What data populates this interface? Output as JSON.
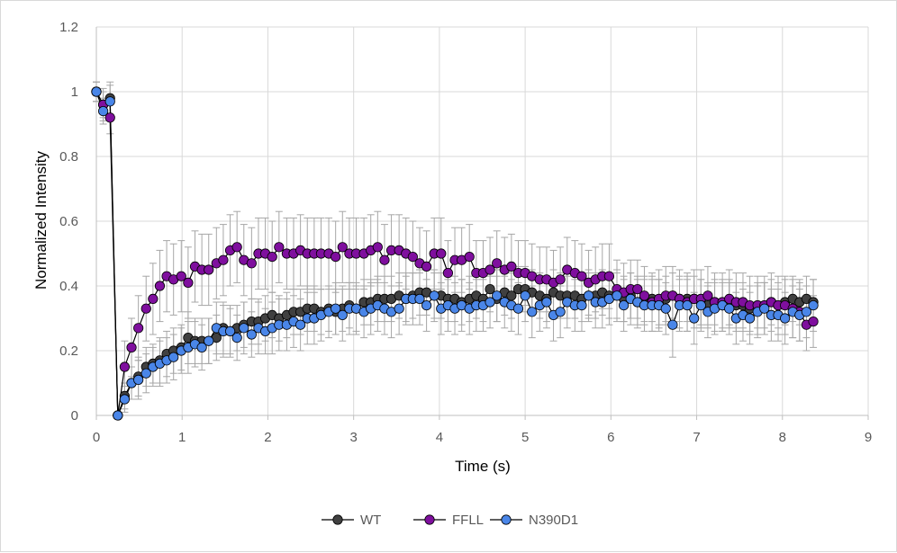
{
  "chart_data": {
    "type": "scatter",
    "title": "",
    "xlabel": "Time (s)",
    "ylabel": "Normalized Intensity",
    "xlim": [
      0,
      9
    ],
    "ylim": [
      0,
      1.2
    ],
    "x_ticks": [
      "0",
      "1",
      "2",
      "3",
      "4",
      "5",
      "6",
      "7",
      "8",
      "9"
    ],
    "y_ticks": [
      "0",
      "0.2",
      "0.4",
      "0.6",
      "0.8",
      "1",
      "1.2"
    ],
    "grid": true,
    "legend_position": "bottom",
    "series": [
      {
        "name": "WT",
        "color": "#404040",
        "x": [
          0,
          0.08,
          0.16,
          0.25,
          0.33,
          0.41,
          0.49,
          0.58,
          0.66,
          0.74,
          0.82,
          0.9,
          0.99,
          1.07,
          1.15,
          1.23,
          1.31,
          1.4,
          1.48,
          1.56,
          1.64,
          1.72,
          1.81,
          1.89,
          1.97,
          2.05,
          2.13,
          2.22,
          2.3,
          2.38,
          2.46,
          2.54,
          2.62,
          2.71,
          2.79,
          2.87,
          2.95,
          3.03,
          3.12,
          3.2,
          3.28,
          3.36,
          3.44,
          3.53,
          3.61,
          3.69,
          3.77,
          3.85,
          3.94,
          4.02,
          4.1,
          4.18,
          4.26,
          4.35,
          4.43,
          4.51,
          4.59,
          4.67,
          4.76,
          4.84,
          4.92,
          5,
          5.08,
          5.17,
          5.25,
          5.33,
          5.41,
          5.49,
          5.58,
          5.66,
          5.74,
          5.82,
          5.9,
          5.98,
          6.07,
          6.15,
          6.23,
          6.31,
          6.39,
          6.48,
          6.56,
          6.64,
          6.72,
          6.8,
          6.89,
          6.97,
          7.05,
          7.13,
          7.21,
          7.3,
          7.38,
          7.46,
          7.54,
          7.62,
          7.71,
          7.79,
          7.87,
          7.95,
          8.03,
          8.12,
          8.2,
          8.28,
          8.36
        ],
        "values": [
          1,
          0.96,
          0.98,
          0,
          0.06,
          0.1,
          0.12,
          0.15,
          0.16,
          0.17,
          0.19,
          0.2,
          0.21,
          0.24,
          0.23,
          0.23,
          0.23,
          0.24,
          0.27,
          0.26,
          0.27,
          0.28,
          0.29,
          0.29,
          0.3,
          0.31,
          0.3,
          0.31,
          0.32,
          0.32,
          0.33,
          0.33,
          0.32,
          0.33,
          0.32,
          0.33,
          0.34,
          0.33,
          0.35,
          0.35,
          0.36,
          0.36,
          0.36,
          0.37,
          0.36,
          0.37,
          0.38,
          0.38,
          0.37,
          0.37,
          0.36,
          0.36,
          0.35,
          0.36,
          0.37,
          0.36,
          0.39,
          0.36,
          0.38,
          0.37,
          0.39,
          0.39,
          0.38,
          0.37,
          0.36,
          0.38,
          0.37,
          0.37,
          0.37,
          0.36,
          0.37,
          0.37,
          0.38,
          0.37,
          0.37,
          0.36,
          0.37,
          0.35,
          0.36,
          0.36,
          0.35,
          0.36,
          0.37,
          0.36,
          0.36,
          0.36,
          0.35,
          0.34,
          0.35,
          0.34,
          0.35,
          0.34,
          0.34,
          0.33,
          0.34,
          0.34,
          0.35,
          0.34,
          0.35,
          0.36,
          0.35,
          0.36,
          0.35
        ],
        "errors": [
          0.03,
          0.04,
          0.05,
          0.01,
          0.04,
          0.05,
          0.06,
          0.06,
          0.06,
          0.07,
          0.07,
          0.07,
          0.07,
          0.08,
          0.07,
          0.07,
          0.07,
          0.07,
          0.08,
          0.07,
          0.07,
          0.07,
          0.07,
          0.07,
          0.07,
          0.07,
          0.07,
          0.07,
          0.07,
          0.07,
          0.07,
          0.07,
          0.07,
          0.07,
          0.07,
          0.07,
          0.07,
          0.07,
          0.07,
          0.07,
          0.07,
          0.07,
          0.07,
          0.07,
          0.07,
          0.07,
          0.07,
          0.07,
          0.07,
          0.07,
          0.07,
          0.07,
          0.07,
          0.07,
          0.07,
          0.07,
          0.07,
          0.07,
          0.07,
          0.07,
          0.07,
          0.07,
          0.07,
          0.07,
          0.07,
          0.07,
          0.07,
          0.07,
          0.07,
          0.07,
          0.07,
          0.07,
          0.07,
          0.07,
          0.07,
          0.07,
          0.07,
          0.07,
          0.07,
          0.07,
          0.07,
          0.07,
          0.07,
          0.07,
          0.07,
          0.07,
          0.07,
          0.07,
          0.07,
          0.07,
          0.07,
          0.07,
          0.07,
          0.07,
          0.07,
          0.07,
          0.07,
          0.07,
          0.07,
          0.07,
          0.07,
          0.07,
          0.07
        ]
      },
      {
        "name": "FFLL",
        "color": "#7f0f9e",
        "x": [
          0,
          0.08,
          0.16,
          0.25,
          0.33,
          0.41,
          0.49,
          0.58,
          0.66,
          0.74,
          0.82,
          0.9,
          0.99,
          1.07,
          1.15,
          1.23,
          1.31,
          1.4,
          1.48,
          1.56,
          1.64,
          1.72,
          1.81,
          1.89,
          1.97,
          2.05,
          2.13,
          2.22,
          2.3,
          2.38,
          2.46,
          2.54,
          2.62,
          2.71,
          2.79,
          2.87,
          2.95,
          3.03,
          3.12,
          3.2,
          3.28,
          3.36,
          3.44,
          3.53,
          3.61,
          3.69,
          3.77,
          3.85,
          3.94,
          4.02,
          4.1,
          4.18,
          4.26,
          4.35,
          4.43,
          4.51,
          4.59,
          4.67,
          4.76,
          4.84,
          4.92,
          5,
          5.08,
          5.17,
          5.25,
          5.33,
          5.41,
          5.49,
          5.58,
          5.66,
          5.74,
          5.82,
          5.9,
          5.98,
          6.07,
          6.15,
          6.23,
          6.31,
          6.39,
          6.48,
          6.56,
          6.64,
          6.72,
          6.8,
          6.89,
          6.97,
          7.05,
          7.13,
          7.21,
          7.3,
          7.38,
          7.46,
          7.54,
          7.62,
          7.71,
          7.79,
          7.87,
          7.95,
          8.03,
          8.12,
          8.2,
          8.28,
          8.36
        ],
        "values": [
          1,
          0.96,
          0.92,
          0,
          0.15,
          0.21,
          0.27,
          0.33,
          0.36,
          0.4,
          0.43,
          0.42,
          0.43,
          0.41,
          0.46,
          0.45,
          0.45,
          0.47,
          0.48,
          0.51,
          0.52,
          0.48,
          0.47,
          0.5,
          0.5,
          0.49,
          0.52,
          0.5,
          0.5,
          0.51,
          0.5,
          0.5,
          0.5,
          0.5,
          0.49,
          0.52,
          0.5,
          0.5,
          0.5,
          0.51,
          0.52,
          0.48,
          0.51,
          0.51,
          0.5,
          0.49,
          0.47,
          0.46,
          0.5,
          0.5,
          0.44,
          0.48,
          0.48,
          0.49,
          0.44,
          0.44,
          0.45,
          0.47,
          0.45,
          0.46,
          0.44,
          0.44,
          0.43,
          0.42,
          0.42,
          0.41,
          0.42,
          0.45,
          0.44,
          0.43,
          0.41,
          0.42,
          0.43,
          0.43,
          0.39,
          0.38,
          0.39,
          0.39,
          0.37,
          0.35,
          0.36,
          0.37,
          0.37,
          0.36,
          0.35,
          0.36,
          0.36,
          0.37,
          0.35,
          0.35,
          0.36,
          0.35,
          0.35,
          0.34,
          0.34,
          0.34,
          0.35,
          0.34,
          0.34,
          0.33,
          0.32,
          0.28,
          0.29
        ],
        "errors": [
          0.03,
          0.05,
          0.05,
          0.01,
          0.08,
          0.09,
          0.1,
          0.1,
          0.11,
          0.11,
          0.11,
          0.11,
          0.11,
          0.11,
          0.11,
          0.11,
          0.11,
          0.11,
          0.11,
          0.11,
          0.11,
          0.11,
          0.11,
          0.11,
          0.11,
          0.11,
          0.11,
          0.11,
          0.11,
          0.11,
          0.11,
          0.11,
          0.11,
          0.11,
          0.11,
          0.11,
          0.11,
          0.11,
          0.11,
          0.11,
          0.11,
          0.11,
          0.11,
          0.11,
          0.11,
          0.11,
          0.11,
          0.11,
          0.11,
          0.11,
          0.1,
          0.1,
          0.1,
          0.1,
          0.1,
          0.1,
          0.1,
          0.1,
          0.1,
          0.1,
          0.1,
          0.1,
          0.1,
          0.1,
          0.1,
          0.1,
          0.1,
          0.1,
          0.1,
          0.1,
          0.1,
          0.1,
          0.1,
          0.1,
          0.09,
          0.09,
          0.09,
          0.09,
          0.09,
          0.09,
          0.09,
          0.09,
          0.09,
          0.09,
          0.09,
          0.09,
          0.09,
          0.09,
          0.09,
          0.09,
          0.09,
          0.09,
          0.09,
          0.09,
          0.09,
          0.09,
          0.09,
          0.09,
          0.09,
          0.09,
          0.09,
          0.08,
          0.08
        ]
      },
      {
        "name": "N390D1",
        "color": "#4a86e8",
        "x": [
          0,
          0.08,
          0.16,
          0.25,
          0.33,
          0.41,
          0.49,
          0.58,
          0.66,
          0.74,
          0.82,
          0.9,
          0.99,
          1.07,
          1.15,
          1.23,
          1.31,
          1.4,
          1.48,
          1.56,
          1.64,
          1.72,
          1.81,
          1.89,
          1.97,
          2.05,
          2.13,
          2.22,
          2.3,
          2.38,
          2.46,
          2.54,
          2.62,
          2.71,
          2.79,
          2.87,
          2.95,
          3.03,
          3.12,
          3.2,
          3.28,
          3.36,
          3.44,
          3.53,
          3.61,
          3.69,
          3.77,
          3.85,
          3.94,
          4.02,
          4.1,
          4.18,
          4.26,
          4.35,
          4.43,
          4.51,
          4.59,
          4.67,
          4.76,
          4.84,
          4.92,
          5,
          5.08,
          5.17,
          5.25,
          5.33,
          5.41,
          5.49,
          5.58,
          5.66,
          5.74,
          5.82,
          5.9,
          5.98,
          6.07,
          6.15,
          6.23,
          6.31,
          6.39,
          6.48,
          6.56,
          6.64,
          6.72,
          6.8,
          6.89,
          6.97,
          7.05,
          7.13,
          7.21,
          7.3,
          7.38,
          7.46,
          7.54,
          7.62,
          7.71,
          7.79,
          7.87,
          7.95,
          8.03,
          8.12,
          8.2,
          8.28,
          8.36
        ],
        "values": [
          1,
          0.94,
          0.97,
          0,
          0.05,
          0.1,
          0.11,
          0.13,
          0.15,
          0.16,
          0.17,
          0.18,
          0.2,
          0.21,
          0.22,
          0.21,
          0.23,
          0.27,
          0.26,
          0.26,
          0.24,
          0.27,
          0.25,
          0.27,
          0.26,
          0.27,
          0.28,
          0.28,
          0.29,
          0.28,
          0.3,
          0.3,
          0.31,
          0.32,
          0.33,
          0.31,
          0.33,
          0.33,
          0.32,
          0.33,
          0.34,
          0.33,
          0.32,
          0.33,
          0.36,
          0.36,
          0.36,
          0.34,
          0.37,
          0.33,
          0.34,
          0.33,
          0.34,
          0.33,
          0.34,
          0.34,
          0.35,
          0.37,
          0.35,
          0.34,
          0.33,
          0.37,
          0.32,
          0.34,
          0.35,
          0.31,
          0.32,
          0.35,
          0.34,
          0.34,
          0.37,
          0.35,
          0.35,
          0.36,
          0.37,
          0.34,
          0.36,
          0.35,
          0.34,
          0.34,
          0.34,
          0.33,
          0.28,
          0.34,
          0.34,
          0.3,
          0.34,
          0.32,
          0.33,
          0.34,
          0.33,
          0.3,
          0.31,
          0.3,
          0.32,
          0.33,
          0.31,
          0.31,
          0.3,
          0.32,
          0.31,
          0.32,
          0.34
        ],
        "errors": [
          0.03,
          0.04,
          0.05,
          0.01,
          0.04,
          0.05,
          0.06,
          0.06,
          0.06,
          0.07,
          0.07,
          0.07,
          0.07,
          0.08,
          0.07,
          0.07,
          0.07,
          0.08,
          0.08,
          0.08,
          0.07,
          0.08,
          0.07,
          0.08,
          0.07,
          0.08,
          0.08,
          0.08,
          0.08,
          0.08,
          0.08,
          0.08,
          0.08,
          0.08,
          0.08,
          0.08,
          0.08,
          0.08,
          0.08,
          0.08,
          0.08,
          0.08,
          0.08,
          0.08,
          0.08,
          0.08,
          0.08,
          0.08,
          0.08,
          0.08,
          0.08,
          0.08,
          0.08,
          0.08,
          0.08,
          0.08,
          0.08,
          0.08,
          0.08,
          0.08,
          0.08,
          0.08,
          0.08,
          0.08,
          0.08,
          0.08,
          0.08,
          0.08,
          0.08,
          0.08,
          0.08,
          0.08,
          0.08,
          0.08,
          0.08,
          0.08,
          0.08,
          0.08,
          0.08,
          0.08,
          0.08,
          0.08,
          0.1,
          0.08,
          0.08,
          0.08,
          0.08,
          0.08,
          0.08,
          0.08,
          0.08,
          0.08,
          0.08,
          0.08,
          0.08,
          0.08,
          0.08,
          0.08,
          0.08,
          0.08,
          0.08,
          0.08,
          0.08
        ]
      }
    ]
  }
}
